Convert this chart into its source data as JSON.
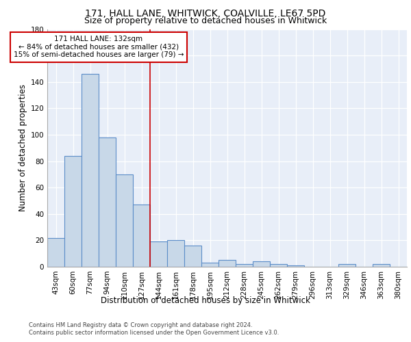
{
  "title1": "171, HALL LANE, WHITWICK, COALVILLE, LE67 5PD",
  "title2": "Size of property relative to detached houses in Whitwick",
  "xlabel": "Distribution of detached houses by size in Whitwick",
  "ylabel": "Number of detached properties",
  "categories": [
    "43sqm",
    "60sqm",
    "77sqm",
    "94sqm",
    "110sqm",
    "127sqm",
    "144sqm",
    "161sqm",
    "178sqm",
    "195sqm",
    "212sqm",
    "228sqm",
    "245sqm",
    "262sqm",
    "279sqm",
    "296sqm",
    "313sqm",
    "329sqm",
    "346sqm",
    "363sqm",
    "380sqm"
  ],
  "values": [
    22,
    84,
    146,
    98,
    70,
    47,
    19,
    20,
    16,
    3,
    5,
    2,
    4,
    2,
    1,
    0,
    0,
    2,
    0,
    2,
    0
  ],
  "bar_width": 1.0,
  "bar_color": "#c8d8e8",
  "bar_edge_color": "#5b8dc8",
  "background_color": "#e8eef8",
  "red_line_x": 5.5,
  "annotation_text": "171 HALL LANE: 132sqm\n← 84% of detached houses are smaller (432)\n15% of semi-detached houses are larger (79) →",
  "annotation_box_color": "#ffffff",
  "annotation_box_edge_color": "#cc0000",
  "ylim": [
    0,
    180
  ],
  "yticks": [
    0,
    20,
    40,
    60,
    80,
    100,
    120,
    140,
    160,
    180
  ],
  "footnote1": "Contains HM Land Registry data © Crown copyright and database right 2024.",
  "footnote2": "Contains public sector information licensed under the Open Government Licence v3.0.",
  "title1_fontsize": 10,
  "title2_fontsize": 9,
  "tick_fontsize": 7.5,
  "label_fontsize": 8.5,
  "annotation_fontsize": 7.5
}
